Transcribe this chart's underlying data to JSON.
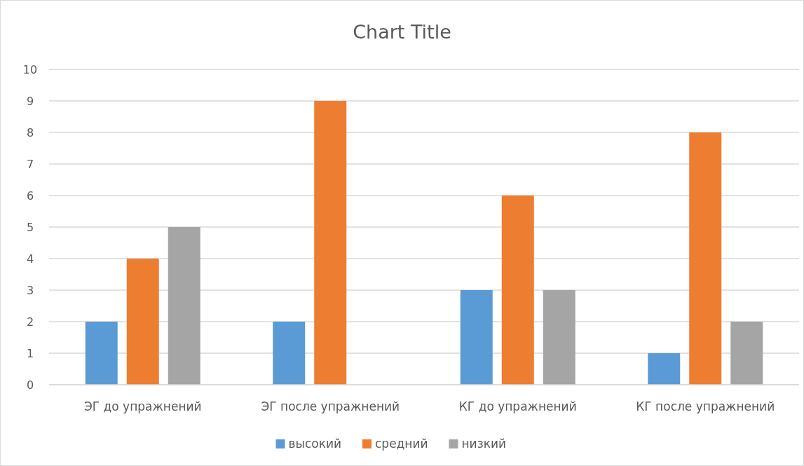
{
  "chart_data": {
    "type": "bar",
    "title": "Chart Title",
    "categories": [
      "ЭГ до упражнений",
      "ЭГ после упражнений",
      "КГ до упражнений",
      "КГ после упражнений"
    ],
    "series": [
      {
        "name": "высокий",
        "color": "#5b9bd5",
        "values": [
          2,
          2,
          3,
          1
        ]
      },
      {
        "name": "средний",
        "color": "#ed7d31",
        "values": [
          4,
          9,
          6,
          8
        ]
      },
      {
        "name": "низкий",
        "color": "#a5a5a5",
        "values": [
          5,
          null,
          3,
          2
        ]
      }
    ],
    "ylim": [
      0,
      10
    ],
    "yticks": [
      0,
      1,
      2,
      3,
      4,
      5,
      6,
      7,
      8,
      9,
      10
    ],
    "grid": "y",
    "legend": "bottom"
  }
}
